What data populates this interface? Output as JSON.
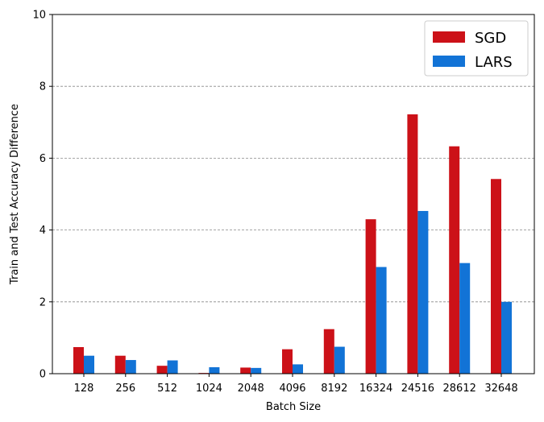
{
  "chart_data": {
    "type": "bar",
    "title": "",
    "xlabel": "Batch Size",
    "ylabel": "Train and Test Accuracy Difference",
    "categories": [
      "128",
      "256",
      "512",
      "1024",
      "2048",
      "4096",
      "8192",
      "16324",
      "24516",
      "28612",
      "32648"
    ],
    "series": [
      {
        "name": "SGD",
        "color": "#cc1118",
        "values": [
          0.74,
          0.5,
          0.22,
          0.02,
          0.17,
          0.68,
          1.24,
          4.3,
          7.22,
          6.33,
          5.42
        ]
      },
      {
        "name": "LARS",
        "color": "#1273d6",
        "values": [
          0.5,
          0.38,
          0.37,
          0.18,
          0.16,
          0.26,
          0.75,
          2.97,
          4.53,
          3.08,
          2.0
        ]
      }
    ],
    "ylim": [
      0,
      10
    ],
    "yticks": [
      0,
      2,
      4,
      6,
      8,
      10
    ],
    "grid": {
      "y": true,
      "style": "dashed"
    },
    "legend": {
      "position": "top-right"
    }
  }
}
